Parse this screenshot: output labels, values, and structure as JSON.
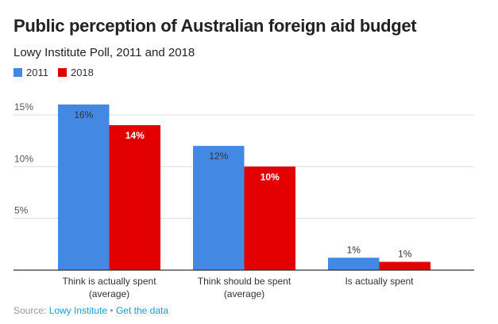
{
  "chart_data": {
    "type": "bar",
    "title": "Public perception of Australian foreign aid budget",
    "subtitle": "Lowy Institute Poll, 2011 and 2018",
    "categories": [
      [
        "Think is actually spent",
        "(average)"
      ],
      [
        "Think should be spent",
        "(average)"
      ],
      [
        "Is actually spent"
      ]
    ],
    "series": [
      {
        "name": "2011",
        "color": "#4389e3",
        "values": [
          16,
          12,
          1.2
        ],
        "labels": [
          "16%",
          "12%",
          "1%"
        ]
      },
      {
        "name": "2018",
        "color": "#e20000",
        "values": [
          14,
          10,
          0.8
        ],
        "labels": [
          "14%",
          "10%",
          "1%"
        ]
      }
    ],
    "yticks": [
      {
        "value": 5,
        "label": "5%"
      },
      {
        "value": 10,
        "label": "10%"
      },
      {
        "value": 15,
        "label": "15%"
      }
    ],
    "ylim": [
      0,
      16
    ],
    "grid": true,
    "legend": "top-left",
    "xlabel": "",
    "ylabel": ""
  },
  "source": {
    "prefix": "Source: ",
    "link": "Lowy Institute",
    "sep": " • ",
    "data_link": "Get the data"
  }
}
